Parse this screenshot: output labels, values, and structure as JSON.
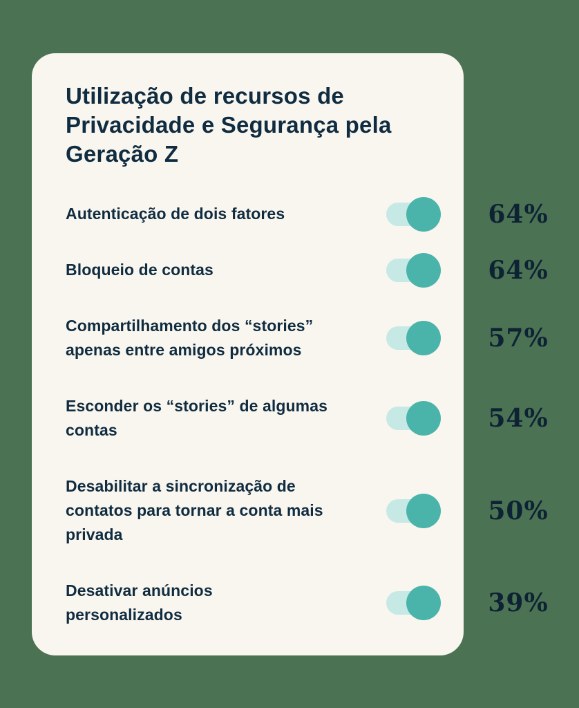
{
  "colors": {
    "page_background": "#4C7254",
    "card_background": "#F9F6EF",
    "text_navy": "#102C40",
    "percent_navy": "#0D2334",
    "toggle_track": "#C7E9E5",
    "toggle_knob": "#4AB4AB"
  },
  "title": "Utilização de recursos de Privacidade e Segurança pela Geração Z",
  "title_lines": [
    "Utilização de recursos de",
    "Privacidade e Segurança pela",
    "Geração Z"
  ],
  "rows": [
    {
      "label": "Autenticação de dois fatores",
      "lines": [
        "Autenticação de dois fatores"
      ],
      "percent": "64%",
      "toggle_state": "on"
    },
    {
      "label": "Bloqueio de contas",
      "lines": [
        "Bloqueio de contas"
      ],
      "percent": "64%",
      "toggle_state": "on"
    },
    {
      "label": "Compartilhamento dos “stories” apenas entre amigos próximos",
      "lines": [
        "Compartilhamento dos “stories”",
        "apenas entre amigos próximos"
      ],
      "percent": "57%",
      "toggle_state": "on"
    },
    {
      "label": "Esconder os “stories” de algumas contas",
      "lines": [
        "Esconder os “stories” de algumas",
        "contas"
      ],
      "percent": "54%",
      "toggle_state": "on"
    },
    {
      "label": "Desabilitar a sincronização de contatos para tornar a conta mais privada",
      "lines": [
        "Desabilitar a sincronização de",
        "contatos para tornar a conta mais",
        "privada"
      ],
      "percent": "50%",
      "toggle_state": "on"
    },
    {
      "label": "Desativar anúncios personalizados",
      "lines": [
        "Desativar anúncios",
        "personalizados"
      ],
      "percent": "39%",
      "toggle_state": "on"
    }
  ],
  "chart_data": {
    "type": "table",
    "title": "Utilização de recursos de Privacidade e Segurança pela Geração Z",
    "categories": [
      "Autenticação de dois fatores",
      "Bloqueio de contas",
      "Compartilhamento dos “stories” apenas entre amigos próximos",
      "Esconder os “stories” de algumas contas",
      "Desabilitar a sincronização de contatos para tornar a conta mais privada",
      "Desativar anúncios personalizados"
    ],
    "values": [
      64,
      64,
      57,
      54,
      50,
      39
    ],
    "unit": "%",
    "legend": "none",
    "notes": "Each category shown with an enabled toggle switch and its adoption percentage"
  }
}
